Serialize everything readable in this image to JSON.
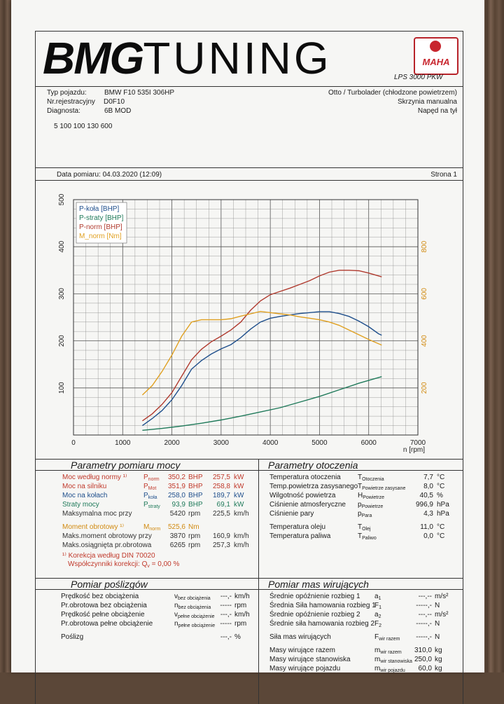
{
  "header": {
    "logo_bold": "BMG",
    "logo_light": "TUNING",
    "maha_label": "MAHA",
    "lps_label": "LPS 3000 PKW",
    "vehicle_type_label": "Typ pojazdu:",
    "vehicle_type": "BMW F10 535I 306HP",
    "reg_label": "Nr.rejestracyjny",
    "reg_value": "D0F10",
    "diag_label": "Diagnosta:",
    "diag_value": "6B MOD",
    "engine": "Otto / Turbolader (chłodzone powietrzem)",
    "gearbox": "Skrzynia manualna",
    "drive": "Napęd na tył",
    "code": "5 100 100 130 600",
    "date": "Data pomiaru: 04.03.2020 (12:09)",
    "page": "Strona 1"
  },
  "chart_data": {
    "type": "line",
    "xlabel": "n [rpm]",
    "xlim": [
      0,
      7000
    ],
    "ylim_left": [
      0,
      500
    ],
    "ylim_right": [
      0,
      1000
    ],
    "x_ticks": [
      "0",
      "1000",
      "2000",
      "3000",
      "4000",
      "5000",
      "6000",
      "7000"
    ],
    "y_left_ticks": [
      "100",
      "200",
      "300",
      "400",
      "500"
    ],
    "y_right_ticks": [
      "200",
      "400",
      "600",
      "800"
    ],
    "legend": [
      "P-koła [BHP]",
      "P-straty [BHP]",
      "P-norm [BHP]",
      "M_norm [Nm]"
    ],
    "series": [
      {
        "name": "P-koła [BHP]",
        "color": "#1f4f8c",
        "axis": "left",
        "x": [
          1400,
          1600,
          1800,
          2000,
          2200,
          2400,
          2600,
          2800,
          3000,
          3200,
          3400,
          3600,
          3800,
          4000,
          4200,
          4400,
          4600,
          4800,
          5000,
          5200,
          5400,
          5600,
          5800,
          6000,
          6200,
          6265
        ],
        "y": [
          20,
          35,
          52,
          75,
          105,
          140,
          158,
          172,
          183,
          192,
          207,
          225,
          240,
          248,
          252,
          255,
          258,
          260,
          262,
          262,
          258,
          252,
          242,
          230,
          215,
          212
        ]
      },
      {
        "name": "P-straty [BHP]",
        "color": "#1f7a5a",
        "axis": "left",
        "x": [
          1400,
          1800,
          2200,
          2600,
          3000,
          3400,
          3800,
          4200,
          4600,
          5000,
          5400,
          5800,
          6265
        ],
        "y": [
          10,
          14,
          19,
          25,
          32,
          40,
          49,
          58,
          70,
          82,
          96,
          110,
          124
        ]
      },
      {
        "name": "P-norm [BHP]",
        "color": "#b03a2e",
        "axis": "left",
        "x": [
          1400,
          1600,
          1800,
          2000,
          2200,
          2400,
          2600,
          2800,
          3000,
          3200,
          3400,
          3600,
          3800,
          4000,
          4200,
          4400,
          4600,
          4800,
          5000,
          5200,
          5400,
          5600,
          5800,
          6000,
          6265
        ],
        "y": [
          30,
          45,
          65,
          90,
          125,
          160,
          182,
          198,
          210,
          223,
          240,
          265,
          285,
          298,
          305,
          312,
          320,
          328,
          338,
          346,
          350,
          350,
          349,
          344,
          336
        ]
      },
      {
        "name": "M_norm [Nm]",
        "color": "#e0a020",
        "axis": "right",
        "x": [
          1400,
          1600,
          1800,
          2000,
          2200,
          2400,
          2600,
          2800,
          3000,
          3200,
          3400,
          3600,
          3800,
          4000,
          4200,
          4400,
          4600,
          4800,
          5000,
          5200,
          5400,
          5600,
          5800,
          6000,
          6265
        ],
        "y": [
          170,
          210,
          270,
          340,
          420,
          480,
          490,
          490,
          490,
          494,
          505,
          515,
          525,
          520,
          515,
          510,
          502,
          496,
          490,
          480,
          466,
          446,
          426,
          406,
          382
        ]
      }
    ]
  },
  "power": {
    "title": "Parametry pomiaru mocy",
    "rows": [
      {
        "label": "Moc według normy ¹⁾",
        "sym": "P",
        "sub": "norm",
        "v1": "350,2",
        "u1": "BHP",
        "v2": "257,5",
        "u2": "kW",
        "cls": "red"
      },
      {
        "label": "Moc na silniku",
        "sym": "P",
        "sub": "Mot",
        "v1": "351,9",
        "u1": "BHP",
        "v2": "258,8",
        "u2": "kW",
        "cls": "red"
      },
      {
        "label": "Moc na kołach",
        "sym": "P",
        "sub": "koła",
        "v1": "258,0",
        "u1": "BHP",
        "v2": "189,7",
        "u2": "kW",
        "cls": "blue"
      },
      {
        "label": "Straty mocy",
        "sym": "P",
        "sub": "straty",
        "v1": "93,9",
        "u1": "BHP",
        "v2": "69,1",
        "u2": "kW",
        "cls": "green"
      },
      {
        "label": "Maksymalna moc przy",
        "sym": "",
        "sub": "",
        "v1": "5420",
        "u1": "rpm",
        "v2": "225,5",
        "u2": "km/h",
        "cls": "gray"
      },
      {
        "label": "Moment obrotowy ¹⁾",
        "sym": "M",
        "sub": "norm",
        "v1": "525,6",
        "u1": "Nm",
        "v2": "",
        "u2": "",
        "cls": "orange"
      },
      {
        "label": "Maks.moment obrotowy przy",
        "sym": "",
        "sub": "",
        "v1": "3870",
        "u1": "rpm",
        "v2": "160,9",
        "u2": "km/h",
        "cls": "gray"
      },
      {
        "label": "Maks.osiągnięta pr.obrotowa",
        "sym": "",
        "sub": "",
        "v1": "6265",
        "u1": "rpm",
        "v2": "257,3",
        "u2": "km/h",
        "cls": "gray"
      }
    ],
    "footnote1": "¹⁾ Korekcja według DIN 70020",
    "footnote2": "Współczynniki korekcji: Q",
    "footnote2_sub": "v",
    "footnote2_val": "= 0,00 %"
  },
  "ambient": {
    "title": "Parametry otoczenia",
    "rows": [
      {
        "label": "Temperatura otoczenia",
        "sym": "T",
        "sub": "Otoczenia",
        "val": "7,7",
        "unit": "°C"
      },
      {
        "label": "Temp.powietrza zasysanego",
        "sym": "T",
        "sub": "Powietrze zasysane",
        "val": "8,0",
        "unit": "°C"
      },
      {
        "label": "Wilgotność powietrza",
        "sym": "H",
        "sub": "Powietrze",
        "val": "40,5",
        "unit": "%"
      },
      {
        "label": "Ciśnienie atmosferyczne",
        "sym": "p",
        "sub": "Powietrze",
        "val": "996,9",
        "unit": "hPa"
      },
      {
        "label": "Ciśnienie pary",
        "sym": "p",
        "sub": "Para",
        "val": "4,3",
        "unit": "hPa"
      },
      {
        "label": "Temperatura oleju",
        "sym": "T",
        "sub": "Olej",
        "val": "11,0",
        "unit": "°C"
      },
      {
        "label": "Temperatura paliwa",
        "sym": "T",
        "sub": "Paliwo",
        "val": "0,0",
        "unit": "°C"
      }
    ]
  },
  "slip": {
    "title": "Pomiar poślizgów",
    "rows": [
      {
        "label": "Prędkość bez obciążenia",
        "sym": "v",
        "sub": "bez obciążenia",
        "val": "---,-",
        "unit": "km/h"
      },
      {
        "label": "Pr.obrotowa bez obciążenia",
        "sym": "n",
        "sub": "bez obciążenia",
        "val": "-----",
        "unit": "rpm"
      },
      {
        "label": "Prędkość pełne obciążenie",
        "sym": "v",
        "sub": "pełne obciążenie",
        "val": "---,-",
        "unit": "km/h"
      },
      {
        "label": "Pr.obrotowa pełne obciążenie",
        "sym": "n",
        "sub": "pełne obciążenie",
        "val": "-----",
        "unit": "rpm"
      },
      {
        "label": "Poślizg",
        "sym": "",
        "sub": "",
        "val": "---,-",
        "unit": "%"
      }
    ]
  },
  "masses": {
    "title": "Pomiar mas wirujących",
    "rows": [
      {
        "label": "Średnie opóźnienie rozbieg 1",
        "sym": "a",
        "sub": "1",
        "val": "---,--",
        "unit": "m/s²"
      },
      {
        "label": "Średnia Siła hamowania rozbieg 1",
        "sym": "F",
        "sub": "1",
        "val": "-----,-",
        "unit": "N"
      },
      {
        "label": "Średnie opóźnienie rozbieg 2",
        "sym": "a",
        "sub": "2",
        "val": "---,--",
        "unit": "m/s²"
      },
      {
        "label": "Średnie siła hamowania rozbieg 2",
        "sym": "F",
        "sub": "2",
        "val": "-----,-",
        "unit": "N"
      },
      {
        "label": "Siła mas wirujących",
        "sym": "F",
        "sub": "wir razem",
        "val": "-----,-",
        "unit": "N"
      },
      {
        "label": "Masy wirujące razem",
        "sym": "m",
        "sub": "wir razem",
        "val": "310,0",
        "unit": "kg"
      },
      {
        "label": "Masy wirujące stanowiska",
        "sym": "m",
        "sub": "wir stanowiska",
        "val": "250,0",
        "unit": "kg"
      },
      {
        "label": "Masy wirujące pojazdu",
        "sym": "m",
        "sub": "wir pojazdu",
        "val": "60,0",
        "unit": "kg"
      }
    ]
  }
}
